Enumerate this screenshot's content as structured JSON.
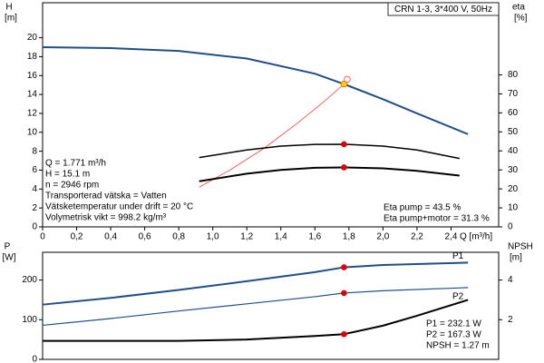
{
  "chart_data": [
    {
      "type": "line",
      "title": "CRN 1-3, 3*400 V, 50Hz",
      "ylabel": "H",
      "yunit": "[m]",
      "y2label": "eta",
      "y2unit": "[%]",
      "xlabel": "Q [m³/h]",
      "xlim": [
        0,
        2.68
      ],
      "ylim": [
        0,
        23.7
      ],
      "y2lim": [
        0,
        118
      ],
      "xticks": [
        0,
        {
          "value": 0.2,
          "label": "0,2"
        },
        {
          "value": 0.4,
          "label": "0,4"
        },
        {
          "value": 0.6,
          "label": "0,6"
        },
        {
          "value": 0.8,
          "label": "0,8"
        },
        {
          "value": 1.0,
          "label": "1,0"
        },
        {
          "value": 1.2,
          "label": "1,2"
        },
        {
          "value": 1.4,
          "label": "1,4"
        },
        {
          "value": 1.6,
          "label": "1,6"
        },
        {
          "value": 1.8,
          "label": "1,8"
        },
        {
          "value": 2.0,
          "label": "2,0"
        },
        {
          "value": 2.2,
          "label": "2,2"
        },
        {
          "value": 2.4,
          "label": "2,4"
        }
      ],
      "yticks": [
        0,
        2,
        4,
        6,
        8,
        10,
        12,
        14,
        16,
        18,
        20
      ],
      "y2ticks": [
        0,
        10,
        20,
        30,
        40,
        50,
        60,
        70,
        80
      ],
      "series": [
        {
          "color": "#1f4e8c",
          "width": 2,
          "x": [
            0,
            0.4,
            0.8,
            1.2,
            1.6,
            1.771,
            2.0,
            2.2,
            2.5
          ],
          "values": [
            19.0,
            18.9,
            18.6,
            17.8,
            16.2,
            15.1,
            13.5,
            12.0,
            9.8
          ]
        },
        {
          "color": "#ff4040",
          "width": 0.8,
          "x": [
            0.92,
            1.1,
            1.3,
            1.5,
            1.65,
            1.771
          ],
          "values": [
            4.2,
            6.0,
            8.3,
            11.0,
            13.2,
            15.1
          ]
        },
        {
          "color": "#000000",
          "width": 1.5,
          "axis": "y2",
          "x": [
            0.92,
            1.2,
            1.4,
            1.6,
            1.771,
            2.0,
            2.2,
            2.45
          ],
          "values": [
            36.5,
            40.5,
            42.5,
            43.4,
            43.5,
            42.5,
            40.5,
            36
          ]
        },
        {
          "color": "#000000",
          "width": 2,
          "axis": "y2",
          "x": [
            0.92,
            1.2,
            1.4,
            1.6,
            1.771,
            2.0,
            2.2,
            2.45
          ],
          "values": [
            24,
            28,
            30,
            31.1,
            31.3,
            30.8,
            29.5,
            27
          ]
        }
      ],
      "points": [
        {
          "color": "#e00000",
          "axis": "y2",
          "x": [
            1.771,
            1.771
          ],
          "values": [
            43.5,
            31.3
          ]
        },
        {
          "color": "#ffd000",
          "x": [
            1.771
          ],
          "values": [
            15.1
          ]
        },
        {
          "color": "#ff6060",
          "hollow": true,
          "x": [
            1.79
          ],
          "values": [
            15.6
          ]
        }
      ],
      "annotations": {
        "left": [
          "Q = 1.771 m³/h",
          "H = 15.1 m",
          "n = 2946 rpm",
          "Transporterad vätska = Vatten",
          "Vätsketemperatur under drift = 20 °C",
          "Volymetrisk vikt = 998.2 kg/m³"
        ],
        "right": [
          "Eta pump = 43.5 %",
          "Eta pump+motor = 31.3 %"
        ]
      }
    },
    {
      "type": "line",
      "ylabel": "P",
      "yunit": "[W]",
      "y2label": "NPSH",
      "y2unit": "[m]",
      "xlim": [
        0,
        2.68
      ],
      "ylim": [
        0,
        270
      ],
      "y2lim": [
        0,
        5.4
      ],
      "yticks": [
        0,
        100,
        200
      ],
      "y2ticks": [
        2,
        4
      ],
      "series": [
        {
          "name": "P1",
          "color": "#1f4e8c",
          "width": 2,
          "x": [
            0,
            0.4,
            0.8,
            1.2,
            1.6,
            1.771,
            2.0,
            2.5
          ],
          "values": [
            138,
            155,
            175,
            197,
            220,
            232.1,
            238,
            244
          ]
        },
        {
          "name": "P2",
          "color": "#1f4e8c",
          "width": 1.2,
          "x": [
            0,
            0.4,
            0.8,
            1.2,
            1.6,
            1.771,
            2.0,
            2.5
          ],
          "values": [
            86,
            103,
            122,
            140,
            158,
            167.3,
            173,
            181
          ]
        },
        {
          "color": "#000000",
          "width": 2,
          "axis": "y2",
          "x": [
            0,
            0.8,
            1.2,
            1.6,
            1.771,
            2.0,
            2.2,
            2.5
          ],
          "values": [
            0.93,
            0.93,
            1.0,
            1.18,
            1.27,
            1.7,
            2.2,
            3.0
          ]
        }
      ],
      "points": [
        {
          "color": "#e00000",
          "x": [
            1.771,
            1.771
          ],
          "values": [
            232.1,
            167.3
          ]
        },
        {
          "color": "#e00000",
          "axis": "y2",
          "x": [
            1.771
          ],
          "values": [
            1.27
          ]
        }
      ],
      "annotations": {
        "right": [
          "P1 = 232.1 W",
          "P2 = 167.3 W",
          "NPSH = 1.27 m"
        ]
      }
    }
  ]
}
